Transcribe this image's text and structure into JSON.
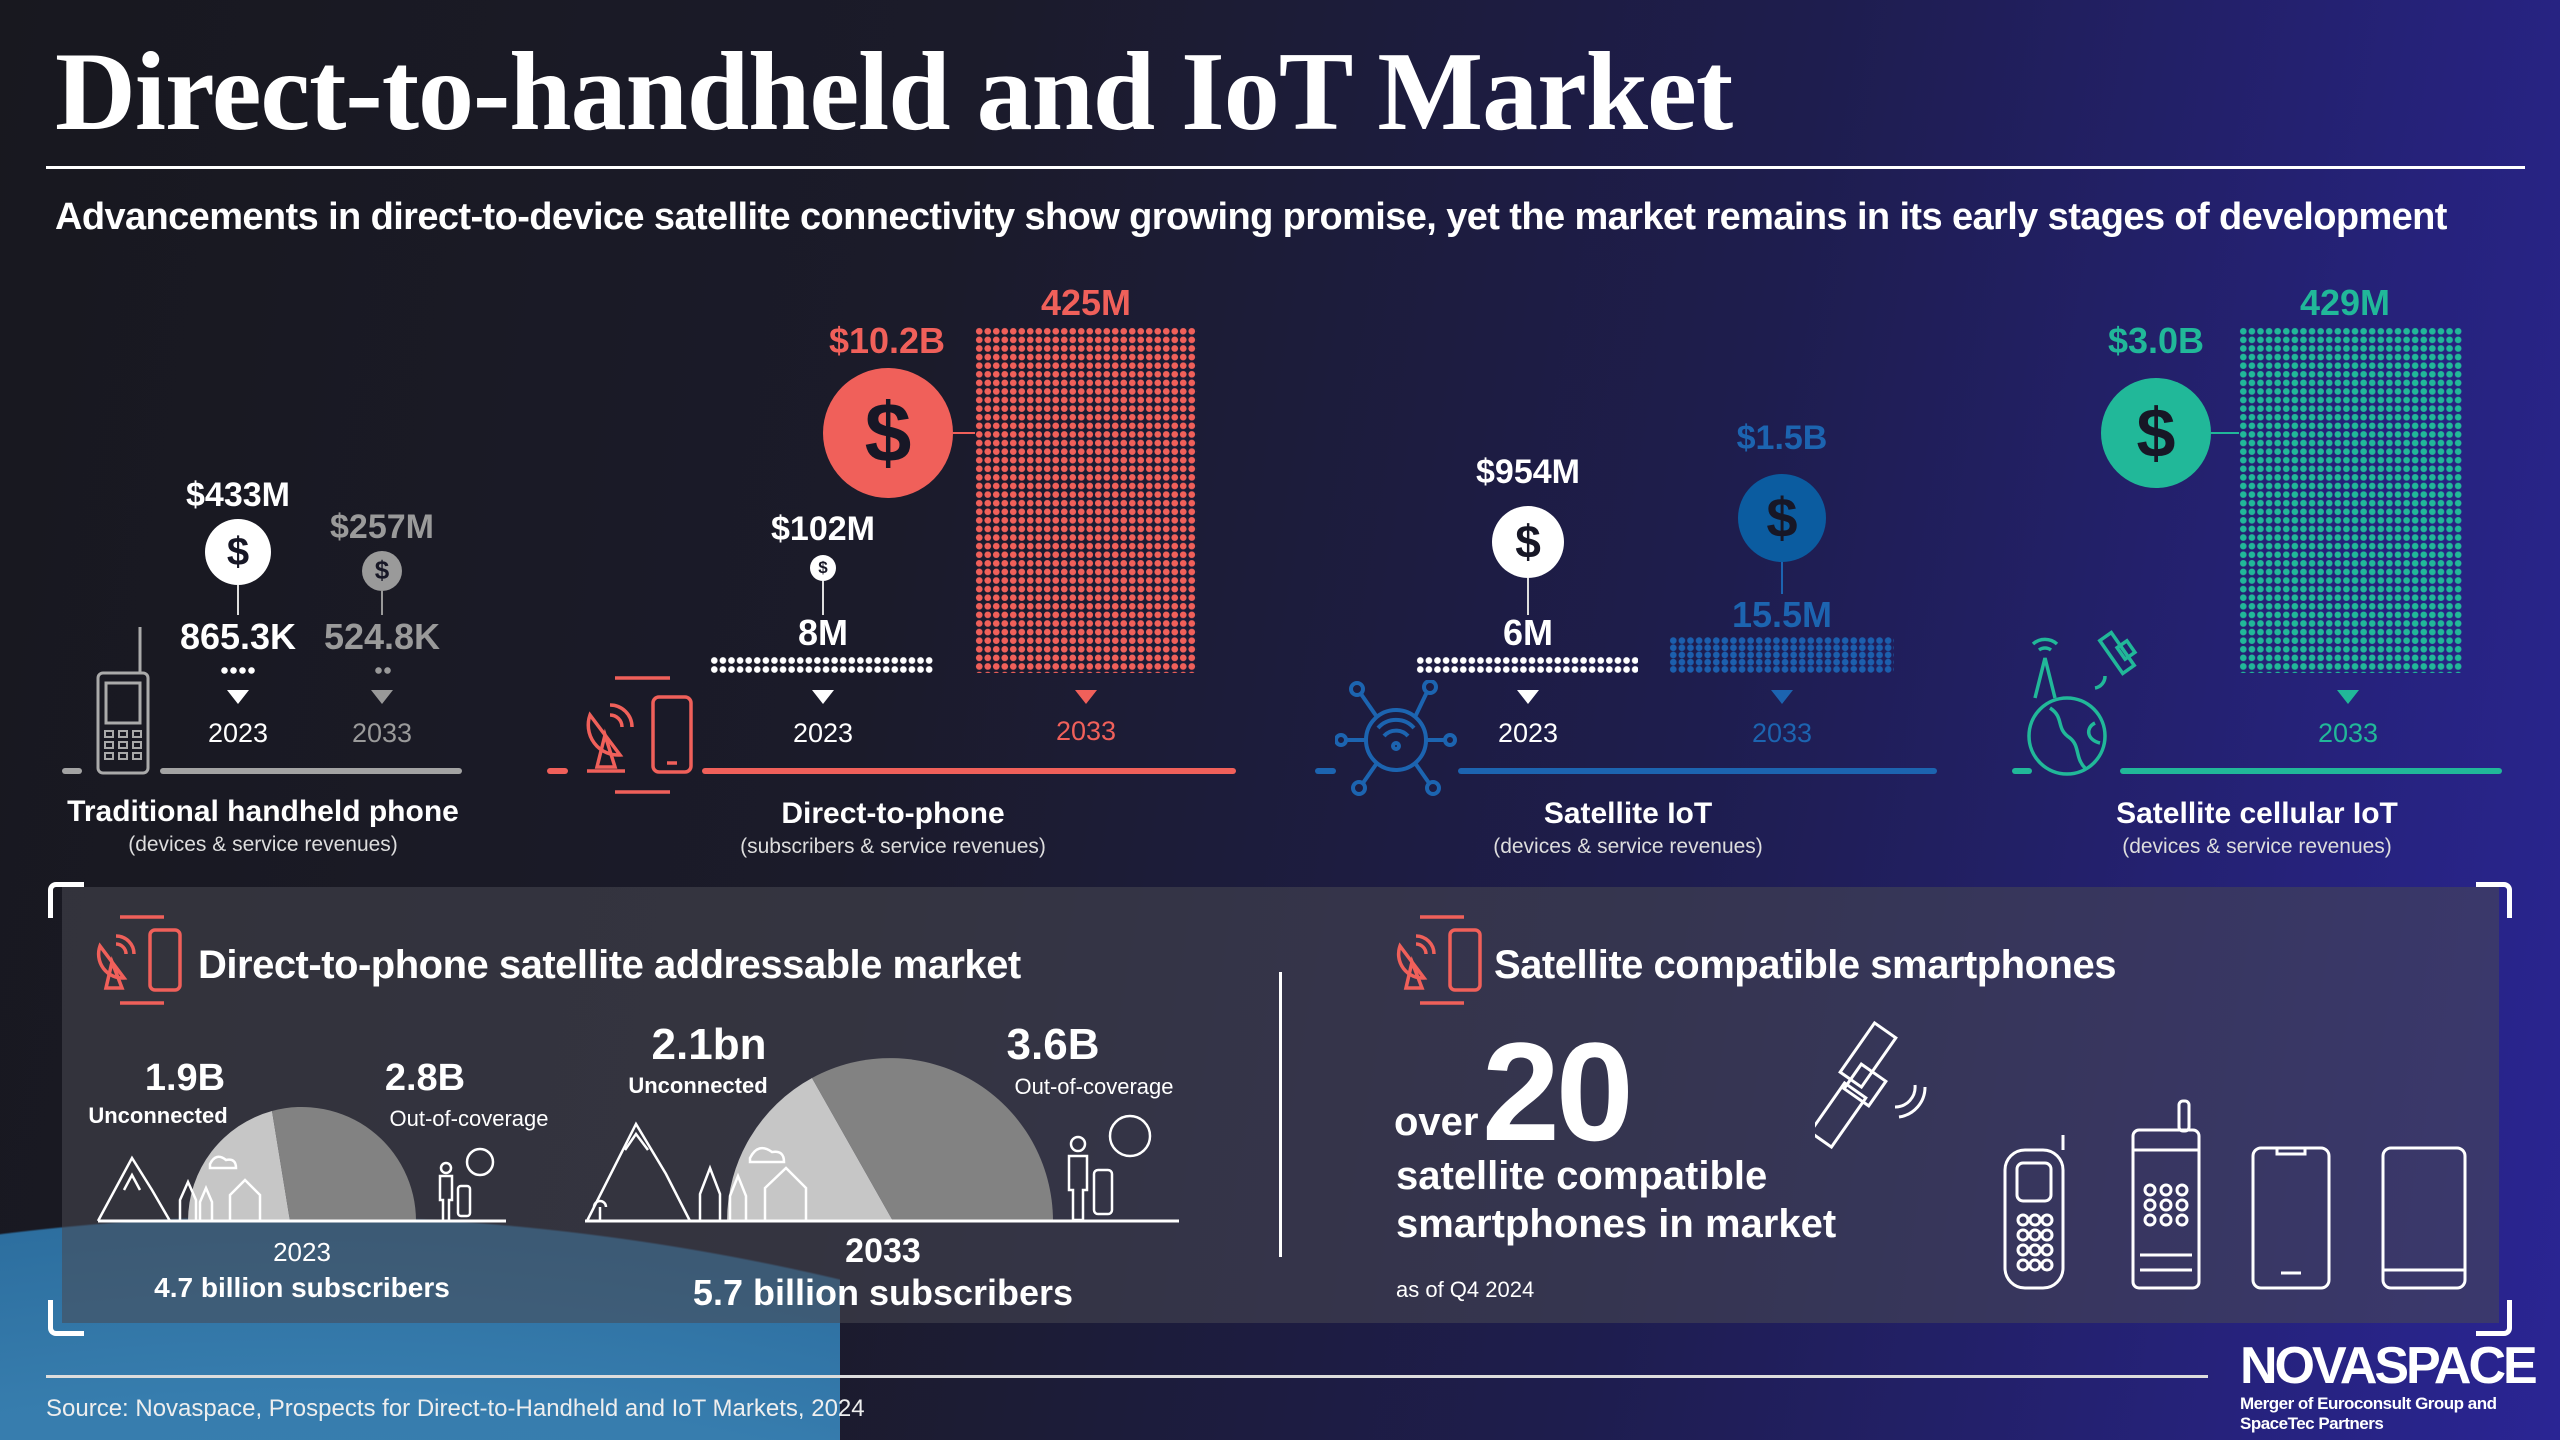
{
  "header": {
    "title": "Direct-to-handheld and IoT Market",
    "subtitle": "Advancements in direct-to-device satellite connectivity show growing promise, yet the market remains in its early stages of development"
  },
  "chart_data": {
    "type": "bar",
    "title": "Direct-to-handheld and IoT Market",
    "categories": [
      "2023",
      "2033"
    ],
    "segments": [
      {
        "name": "Traditional handheld phone",
        "subtitle": "(devices & service revenues)",
        "color": "#a3a3a3",
        "y2023": {
          "year": "2023",
          "revenue": "$433M",
          "units": "865.3K"
        },
        "y2033": {
          "year": "2033",
          "revenue": "$257M",
          "units": "524.8K"
        },
        "revenue_musd": [
          433,
          257
        ],
        "units_m": [
          0.8653,
          0.5248
        ]
      },
      {
        "name": "Direct-to-phone",
        "subtitle": "(subscribers & service revenues)",
        "color": "#f0605a",
        "y2023": {
          "year": "2023",
          "revenue": "$102M",
          "units": "8M"
        },
        "y2033": {
          "year": "2033",
          "revenue": "$10.2B",
          "units": "425M"
        },
        "revenue_musd": [
          102,
          10200
        ],
        "units_m": [
          8,
          425
        ]
      },
      {
        "name": "Satellite IoT",
        "subtitle": "(devices & service revenues)",
        "color": "#1c64b0",
        "y2023": {
          "year": "2023",
          "revenue": "$954M",
          "units": "6M"
        },
        "y2033": {
          "year": "2033",
          "revenue": "$1.5B",
          "units": "15.5M"
        },
        "revenue_musd": [
          954,
          1500
        ],
        "units_m": [
          6,
          15.5
        ]
      },
      {
        "name": "Satellite cellular IoT",
        "subtitle": "(devices & service revenues)",
        "color": "#21b899",
        "y2033": {
          "year": "2033",
          "revenue": "$3.0B",
          "units": "429M"
        },
        "revenue_musd": [
          null,
          3000
        ],
        "units_m": [
          null,
          429
        ]
      }
    ]
  },
  "addressable": {
    "title": "Direct-to-phone satellite addressable market",
    "y2023": {
      "unconnected": "1.9B",
      "unconnected_label": "Unconnected",
      "out": "2.8B",
      "out_label": "Out-of-coverage",
      "year": "2023",
      "total": "4.7 billion subscribers",
      "unconnected_b": 1.9,
      "out_b": 2.8
    },
    "y2033": {
      "unconnected": "2.1bn",
      "unconnected_label": "Unconnected",
      "out": "3.6B",
      "out_label": "Out-of-coverage",
      "year": "2033",
      "total": "5.7 billion subscribers",
      "unconnected_b": 2.1,
      "out_b": 3.6
    }
  },
  "smartphones": {
    "title": "Satellite compatible smartphones",
    "over": "over",
    "count": "20",
    "line1": "satellite compatible",
    "line2": "smartphones in market",
    "note": "as of Q4 2024"
  },
  "footer": {
    "source": "Source: Novaspace, Prospects for Direct-to-Handheld and IoT Markets, 2024",
    "logo": "NOVASPACE",
    "logo_sub1": "Merger of Euroconsult Group and",
    "logo_sub2": "SpaceTec Partners"
  }
}
